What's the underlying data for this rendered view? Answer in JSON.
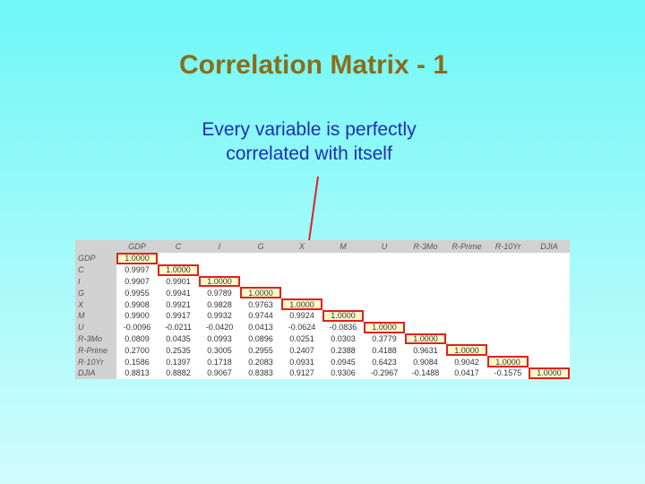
{
  "title": "Correlation Matrix - 1",
  "callout": {
    "line1": "Every variable is perfectly",
    "line2": "correlated with itself"
  },
  "colors": {
    "title": "#8a6d1b",
    "callout_text": "#1f2fb5",
    "arrow": "#e02020",
    "highlight_fill": "#fbfdc9",
    "highlight_border": "#e02020",
    "header_bg": "#d2d2d2"
  },
  "matrix": {
    "columns": [
      "GDP",
      "C",
      "I",
      "G",
      "X",
      "M",
      "U",
      "R-3Mo",
      "R-Prime",
      "R-10Yr",
      "DJIA"
    ],
    "rows": [
      {
        "label": "GDP",
        "values": [
          "1.0000"
        ]
      },
      {
        "label": "C",
        "values": [
          "0.9997",
          "1.0000"
        ]
      },
      {
        "label": "I",
        "values": [
          "0.9907",
          "0.9901",
          "1.0000"
        ]
      },
      {
        "label": "G",
        "values": [
          "0.9955",
          "0.9941",
          "0.9789",
          "1.0000"
        ]
      },
      {
        "label": "X",
        "values": [
          "0.9908",
          "0.9921",
          "0.9828",
          "0.9763",
          "1.0000"
        ]
      },
      {
        "label": "M",
        "values": [
          "0.9900",
          "0.9917",
          "0.9932",
          "0.9744",
          "0.9924",
          "1.0000"
        ]
      },
      {
        "label": "U",
        "values": [
          "-0.0096",
          "-0.0211",
          "-0.0420",
          "0.0413",
          "-0.0624",
          "-0.0836",
          "1.0000"
        ]
      },
      {
        "label": "R-3Mo",
        "values": [
          "0.0809",
          "0.0435",
          "0.0993",
          "0.0896",
          "0.0251",
          "0.0303",
          "0.3779",
          "1.0000"
        ]
      },
      {
        "label": "R-Prime",
        "values": [
          "0.2700",
          "0.2535",
          "0.3005",
          "0.2955",
          "0.2407",
          "0.2388",
          "0.4188",
          "0.9631",
          "1.0000"
        ]
      },
      {
        "label": "R-10Yr",
        "values": [
          "0.1586",
          "0.1397",
          "0.1718",
          "0.2083",
          "0.0931",
          "0.0945",
          "0.6423",
          "0.9084",
          "0.9042",
          "1.0000"
        ]
      },
      {
        "label": "DJIA",
        "values": [
          "0.8813",
          "0.8882",
          "0.9067",
          "0.8383",
          "0.9127",
          "0.9306",
          "-0.2967",
          "-0.1488",
          "0.0417",
          "-0.1575",
          "1.0000"
        ]
      }
    ]
  }
}
